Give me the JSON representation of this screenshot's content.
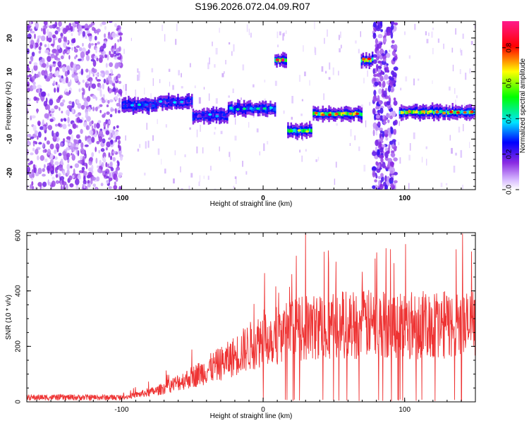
{
  "title": "S196.2026.072.04.09.R07",
  "chart_data": [
    {
      "type": "heatmap",
      "name": "spectrogram",
      "xlabel": "Height of straight line (km)",
      "ylabel": "Frequency (Hz)",
      "xlim": [
        -167,
        150
      ],
      "ylim": [
        -25,
        25
      ],
      "xticks": [
        -100,
        0,
        100
      ],
      "yticks": [
        -20,
        -10,
        0,
        10,
        20
      ],
      "colorbar": {
        "label": "Normalized spectral amplitude",
        "range": [
          0,
          0.95
        ],
        "ticks": [
          0.0,
          0.2,
          0.4,
          0.6,
          0.8
        ],
        "tick_labels": [
          "0.0",
          "0.2",
          "0.4",
          "0.6",
          "0.8"
        ]
      },
      "noise_region": {
        "x": [
          -167,
          -100
        ],
        "level": 0.15
      },
      "tone_segments": [
        {
          "x": [
            -100,
            -75
          ],
          "freq": 0,
          "amp": 0.3
        },
        {
          "x": [
            -75,
            -50
          ],
          "freq": 1,
          "amp": 0.25
        },
        {
          "x": [
            -50,
            -25
          ],
          "freq": -3,
          "amp": 0.25
        },
        {
          "x": [
            -25,
            8
          ],
          "freq": -1,
          "amp": 0.35
        },
        {
          "x": [
            8,
            16
          ],
          "freq": 13.5,
          "amp": 0.8
        },
        {
          "x": [
            17,
            34
          ],
          "freq": -7.5,
          "amp": 0.55
        },
        {
          "x": [
            35,
            69
          ],
          "freq": -2.5,
          "amp": 0.7
        },
        {
          "x": [
            69,
            77
          ],
          "freq": 13.5,
          "amp": 0.8
        },
        {
          "x": [
            96,
            150
          ],
          "freq": -2,
          "amp": 0.7
        }
      ],
      "broadband_spike": {
        "x": [
          78,
          94
        ]
      }
    },
    {
      "type": "line",
      "name": "snr",
      "xlabel": "Height of straight line (km)",
      "ylabel": "SNR (10 * v/v)",
      "xlim": [
        -167,
        150
      ],
      "ylim": [
        0,
        610
      ],
      "xticks": [
        -100,
        0,
        100
      ],
      "yticks": [
        0,
        200,
        400,
        600
      ],
      "series": [
        {
          "name": "SNR",
          "color": "#ee3333",
          "trend": [
            [
              -167,
              15
            ],
            [
              -100,
              15
            ],
            [
              -75,
              40
            ],
            [
              -50,
              90
            ],
            [
              -25,
              150
            ],
            [
              0,
              230
            ],
            [
              25,
              260
            ],
            [
              50,
              280
            ],
            [
              100,
              280
            ],
            [
              150,
              275
            ]
          ],
          "peak": {
            "x": 30,
            "y": 610
          }
        }
      ]
    }
  ]
}
